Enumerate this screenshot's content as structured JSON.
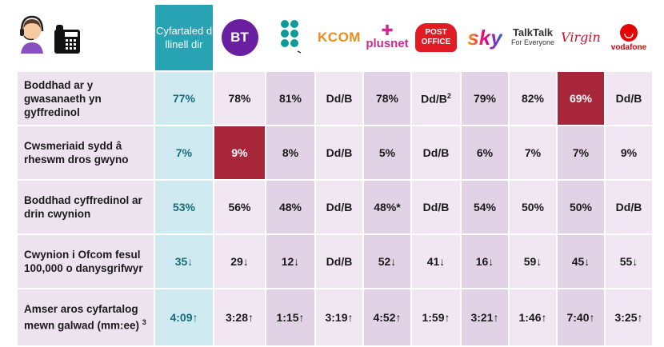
{
  "header": {
    "average_label": "Cyfartaled d llinell dir",
    "providers": [
      "BT",
      "EE",
      "KCOM",
      "plusnet",
      "POST OFFICE",
      "sky",
      "TalkTalk",
      "Virgin",
      "vodafone"
    ],
    "provider_sublabels": {
      "talktalk": "For Everyone",
      "vodafone_mark": "◡"
    }
  },
  "rows": [
    {
      "label": "Boddhad ar y gwasanaeth yn gyffredinol",
      "average": "77%",
      "values": [
        "78%",
        "81%",
        "Dd/B",
        "78%",
        "Dd/B",
        "79%",
        "82%",
        "69%",
        "Dd/B"
      ],
      "post_office_sup": "2"
    },
    {
      "label": "Cwsmeriaid sydd â rheswm dros gwyno",
      "average": "7%",
      "values": [
        "9%",
        "8%",
        "Dd/B",
        "5%",
        "Dd/B",
        "6%",
        "7%",
        "7%",
        "9%"
      ]
    },
    {
      "label": "Boddhad cyffredinol ar drin cwynion",
      "average": "53%",
      "values": [
        "56%",
        "48%",
        "Dd/B",
        "48%*",
        "Dd/B",
        "54%",
        "50%",
        "50%",
        "Dd/B"
      ]
    },
    {
      "label": "Cwynion i Ofcom fesul 100,000 o danysgrifwyr",
      "average": "35",
      "values": [
        "29",
        "12",
        "Dd/B",
        "52",
        "41",
        "16",
        "59",
        "45",
        "55"
      ],
      "arrow": "↓"
    },
    {
      "label": "Amser aros cyfartalog mewn galwad (mm:ee)",
      "label_sup": "3",
      "average": "4:09",
      "values": [
        "3:28",
        "1:15",
        "3:19",
        "4:52",
        "1:59",
        "3:21",
        "1:46",
        "7:40",
        "3:25"
      ],
      "arrow": "↑"
    }
  ],
  "colors": {
    "average_header": "#27a3b4",
    "average_cell": "#cfeaf0",
    "highlight": "#a8263a",
    "label_bg": "#ede3ef"
  }
}
